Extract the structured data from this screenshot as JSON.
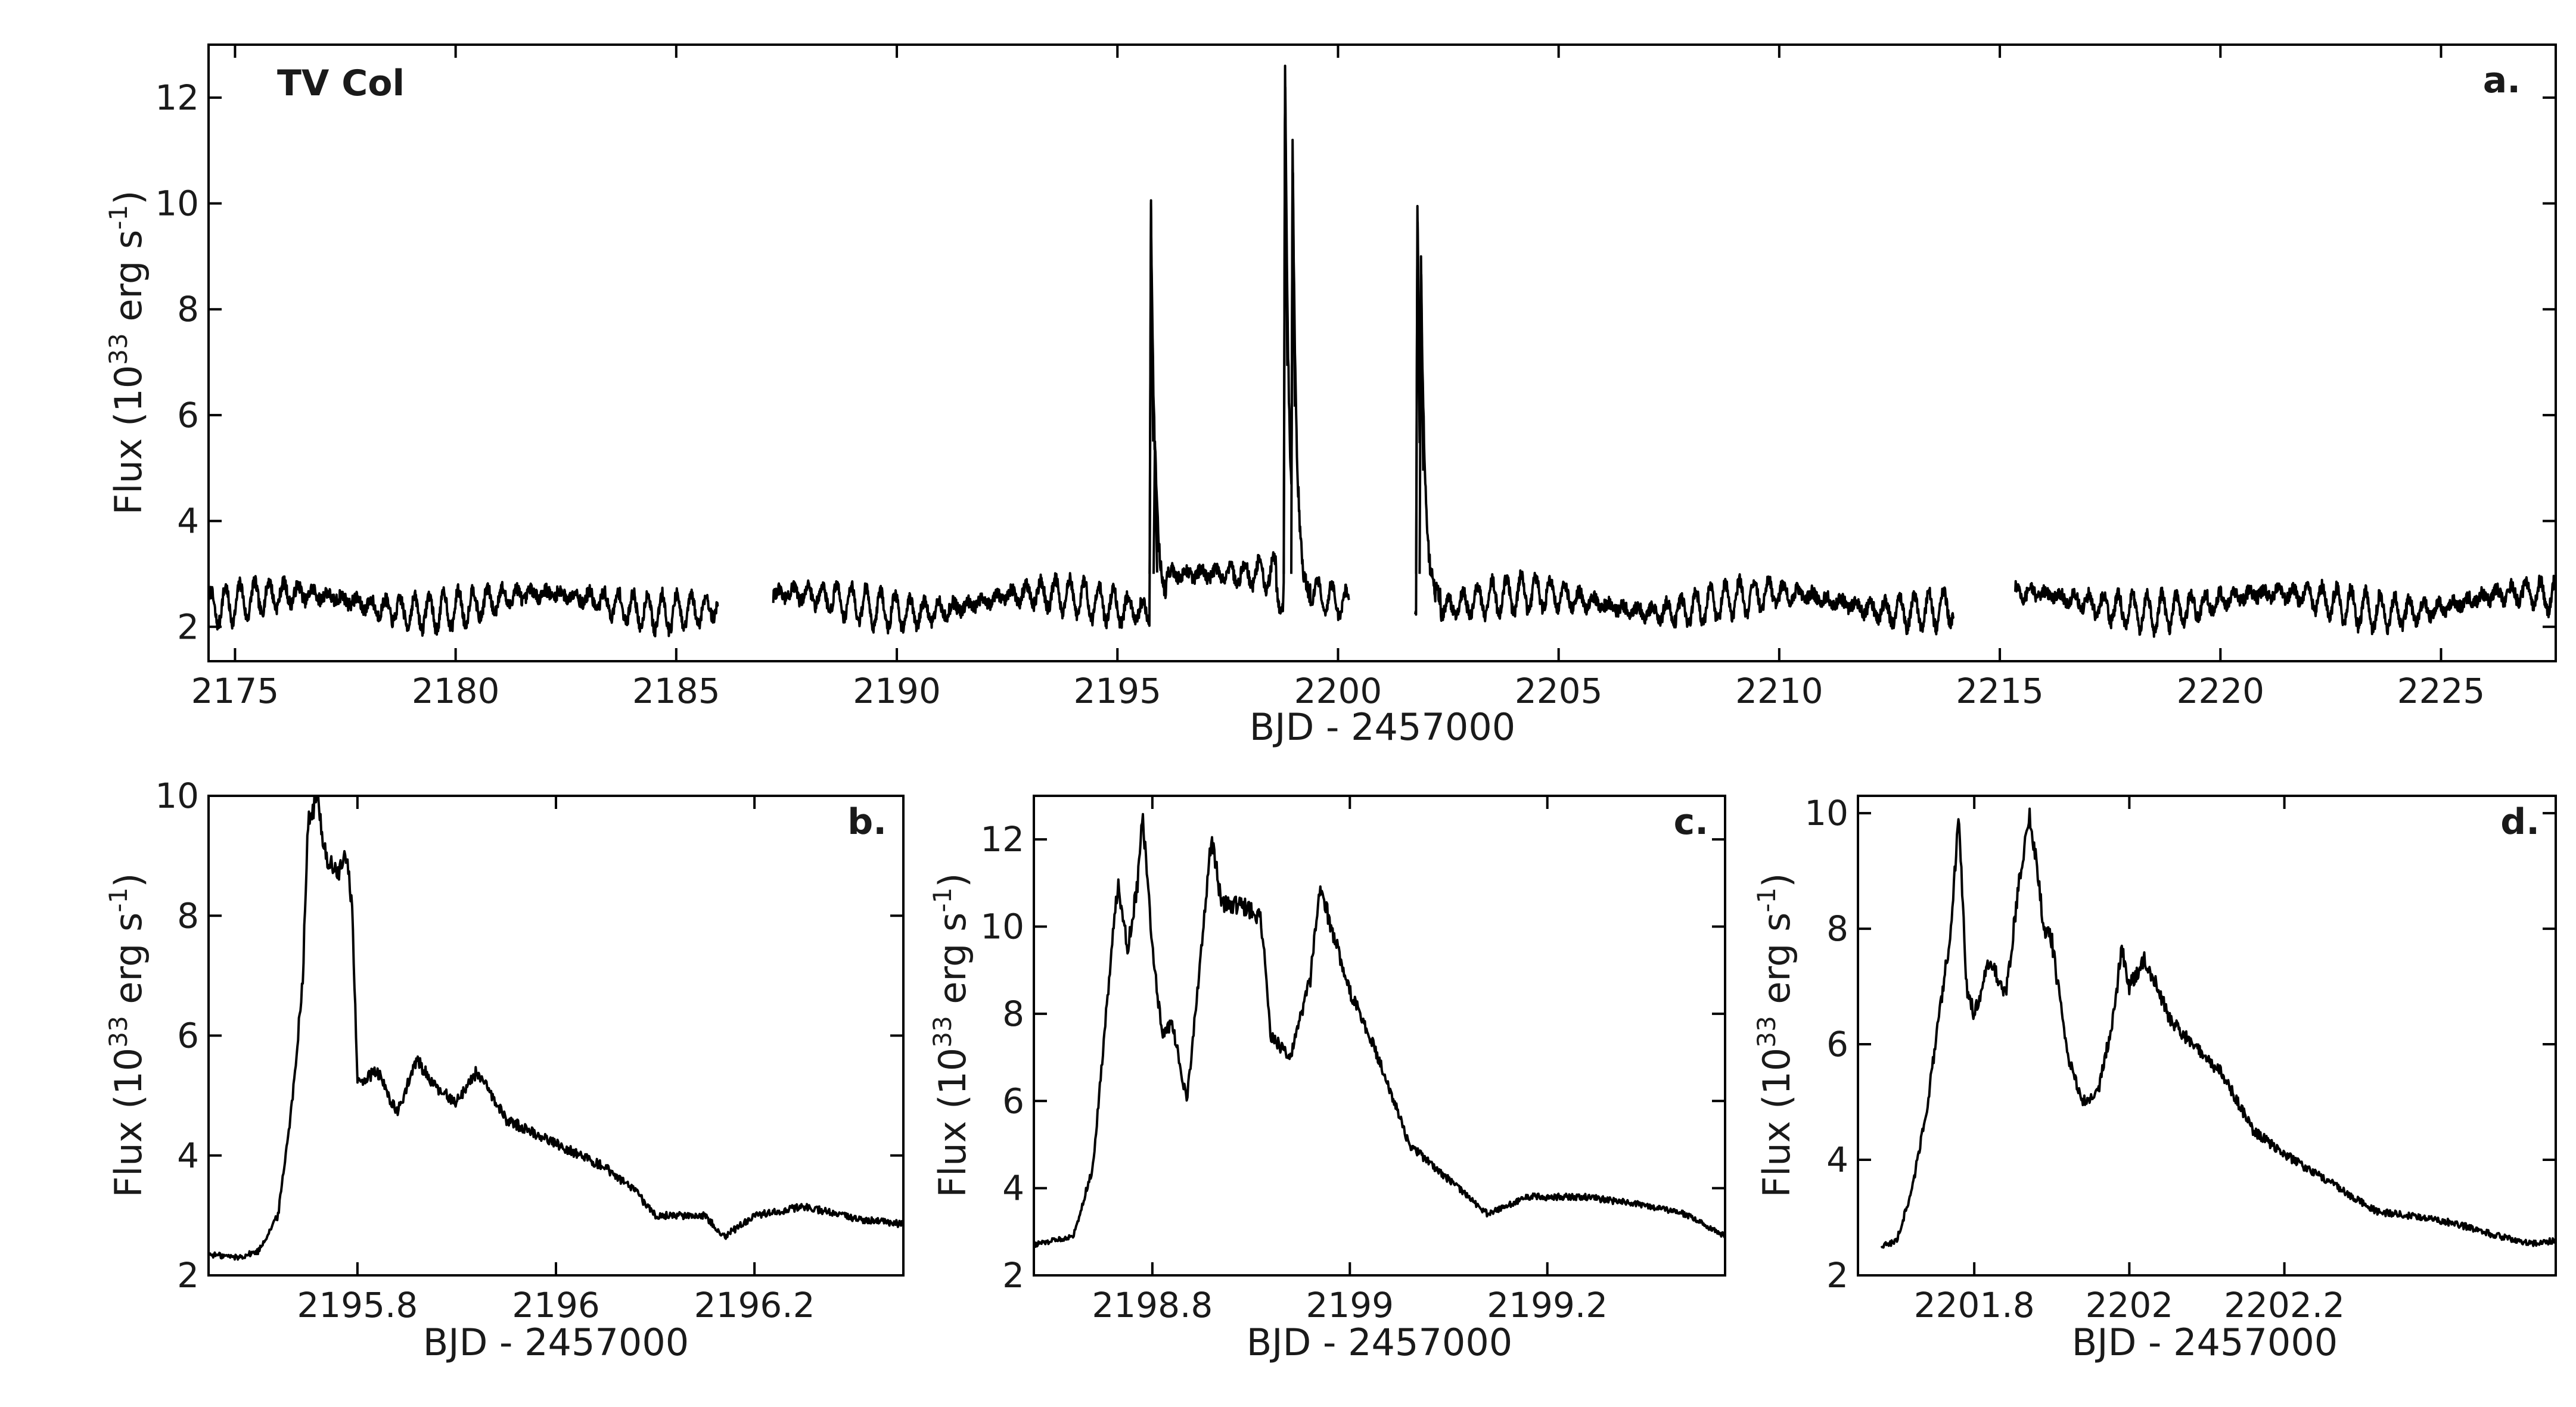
{
  "figure": {
    "background": "#ffffff",
    "line_color": "#000000"
  },
  "chart_data": [
    {
      "id": "a",
      "type": "line",
      "panel_label": "a.",
      "annotation": "TV Col",
      "xlabel": "BJD - 2457000",
      "ylabel": "Flux (10^33 erg s^-1)",
      "ylabel_parts": {
        "base": "Flux (10",
        "exp1": "33",
        "mid": " erg s",
        "exp2": "-1",
        "end": ")"
      },
      "xlim": [
        2174.4,
        2227.6
      ],
      "ylim": [
        1.35,
        13.0
      ],
      "xticks": [
        2175,
        2180,
        2185,
        2190,
        2195,
        2200,
        2205,
        2210,
        2215,
        2220,
        2225
      ],
      "yticks": [
        2,
        4,
        6,
        8,
        10,
        12
      ],
      "grid": false,
      "segments": [
        [
          2174.4,
          2185.95
        ],
        [
          2187.2,
          2200.25
        ],
        [
          2201.75,
          2213.95
        ],
        [
          2215.35,
          2227.6
        ]
      ],
      "flares": [
        {
          "x": 2195.76,
          "y": 10.0
        },
        {
          "x": 2195.85,
          "y": 5.5
        },
        {
          "x": 2198.8,
          "y": 12.6
        },
        {
          "x": 2198.97,
          "y": 11.2
        },
        {
          "x": 2201.8,
          "y": 9.95
        },
        {
          "x": 2201.88,
          "y": 9.0
        }
      ],
      "plateau": {
        "x_range": [
          2196.1,
          2198.6
        ],
        "level": 3.0
      },
      "baseline": {
        "level": 2.45,
        "amplitude": 0.35,
        "period": 0.33
      }
    },
    {
      "id": "b",
      "type": "line",
      "panel_label": "b.",
      "xlabel": "BJD - 2457000",
      "ylabel": "Flux (10^33 erg s^-1)",
      "ylabel_parts": {
        "base": "Flux (10",
        "exp1": "33",
        "mid": " erg s",
        "exp2": "-1",
        "end": ")"
      },
      "xlim": [
        2195.65,
        2196.35
      ],
      "ylim": [
        2,
        10
      ],
      "xticks": [
        2195.8,
        2196,
        2196.2
      ],
      "yticks": [
        2,
        4,
        6,
        8,
        10
      ],
      "grid": false,
      "x": [
        2195.65,
        2195.68,
        2195.7,
        2195.72,
        2195.735,
        2195.745,
        2195.75,
        2195.76,
        2195.765,
        2195.77,
        2195.78,
        2195.79,
        2195.795,
        2195.8,
        2195.82,
        2195.84,
        2195.86,
        2195.88,
        2195.9,
        2195.92,
        2195.95,
        2196.0,
        2196.05,
        2196.08,
        2196.1,
        2196.15,
        2196.17,
        2196.2,
        2196.25,
        2196.3,
        2196.35
      ],
      "y": [
        2.35,
        2.3,
        2.4,
        3.0,
        5.0,
        7.0,
        9.5,
        10.0,
        9.3,
        8.9,
        8.7,
        9.0,
        8.0,
        5.2,
        5.4,
        4.7,
        5.6,
        5.1,
        4.9,
        5.4,
        4.6,
        4.2,
        3.8,
        3.4,
        3.0,
        3.0,
        2.65,
        3.0,
        3.15,
        2.95,
        2.85
      ]
    },
    {
      "id": "c",
      "type": "line",
      "panel_label": "c.",
      "xlabel": "BJD - 2457000",
      "ylabel": "Flux (10^33 erg s^-1)",
      "ylabel_parts": {
        "base": "Flux (10",
        "exp1": "33",
        "mid": " erg s",
        "exp2": "-1",
        "end": ")"
      },
      "xlim": [
        2198.68,
        2199.38
      ],
      "ylim": [
        2,
        13
      ],
      "xticks": [
        2198.8,
        2199,
        2199.2
      ],
      "yticks": [
        2,
        4,
        6,
        8,
        10,
        12
      ],
      "grid": false,
      "x": [
        2198.68,
        2198.7,
        2198.72,
        2198.74,
        2198.755,
        2198.765,
        2198.775,
        2198.785,
        2198.79,
        2198.8,
        2198.81,
        2198.82,
        2198.835,
        2198.85,
        2198.86,
        2198.87,
        2198.89,
        2198.91,
        2198.92,
        2198.94,
        2198.96,
        2198.97,
        2199.0,
        2199.02,
        2199.04,
        2199.06,
        2199.1,
        2199.14,
        2199.18,
        2199.24,
        2199.3,
        2199.34,
        2199.38
      ],
      "y": [
        2.7,
        2.8,
        2.9,
        4.5,
        8.5,
        11.0,
        9.5,
        11.0,
        12.6,
        9.5,
        7.5,
        7.8,
        6.0,
        9.5,
        12.1,
        10.5,
        10.5,
        10.2,
        7.5,
        7.0,
        8.8,
        10.9,
        8.5,
        7.5,
        6.3,
        5.0,
        4.2,
        3.4,
        3.8,
        3.8,
        3.6,
        3.4,
        2.9
      ]
    },
    {
      "id": "d",
      "type": "line",
      "panel_label": "d.",
      "xlabel": "BJD - 2457000",
      "ylabel": "Flux (10^33 erg s^-1)",
      "ylabel_parts": {
        "base": "Flux (10",
        "exp1": "33",
        "mid": " erg s",
        "exp2": "-1",
        "end": ")"
      },
      "xlim": [
        2201.65,
        2202.55
      ],
      "ylim": [
        2,
        10.3
      ],
      "xticks": [
        2201.8,
        2202,
        2202.2
      ],
      "yticks": [
        2,
        4,
        6,
        8,
        10
      ],
      "grid": false,
      "x": [
        2201.68,
        2201.7,
        2201.72,
        2201.74,
        2201.76,
        2201.77,
        2201.78,
        2201.79,
        2201.8,
        2201.82,
        2201.84,
        2201.86,
        2201.87,
        2201.88,
        2201.89,
        2201.9,
        2201.92,
        2201.94,
        2201.96,
        2201.98,
        2201.99,
        2202.0,
        2202.02,
        2202.05,
        2202.08,
        2202.12,
        2202.16,
        2202.2,
        2202.26,
        2202.32,
        2202.38,
        2202.42,
        2202.47,
        2202.52,
        2202.55
      ],
      "y": [
        2.5,
        2.6,
        3.5,
        5.0,
        7.0,
        8.0,
        9.95,
        7.0,
        6.5,
        7.5,
        6.8,
        9.0,
        10.0,
        9.2,
        8.0,
        7.8,
        5.8,
        5.0,
        5.2,
        6.5,
        7.7,
        7.0,
        7.5,
        6.5,
        6.0,
        5.5,
        4.5,
        4.1,
        3.6,
        3.1,
        3.0,
        2.9,
        2.7,
        2.55,
        2.6
      ]
    }
  ]
}
